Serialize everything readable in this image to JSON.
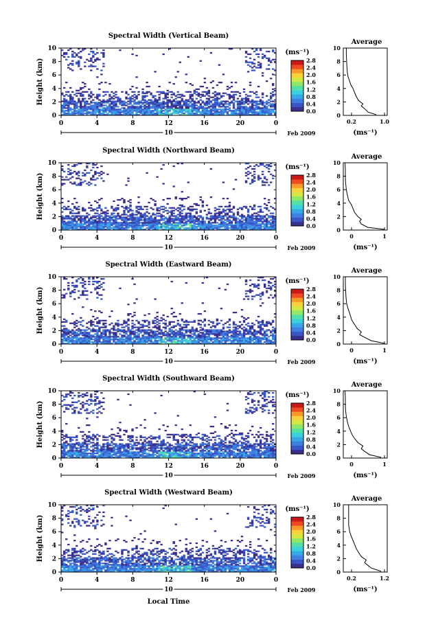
{
  "figure": {
    "xlabel": "Local Time",
    "date_label": "Feb 2009",
    "day_label": "10",
    "ylabel": "Height (km)",
    "unit_label": "(ms⁻¹)",
    "avg_title": "Average",
    "avg_xlabel": "(ms⁻¹)"
  },
  "chart_data": [
    {
      "type": "heatmap",
      "title": "Spectral Width (Vertical Beam)",
      "x_ticks": [
        "0",
        "4",
        "8",
        "12",
        "16",
        "20",
        "0"
      ],
      "y_ticks": [
        "0",
        "2",
        "4",
        "6",
        "8",
        "10"
      ],
      "colorbar_ticks": [
        "0.0",
        "0.4",
        "0.8",
        "1.2",
        "1.6",
        "2.0",
        "2.4",
        "2.8"
      ],
      "avg_x_ticks": [
        "0.2",
        "1.0"
      ],
      "avg_y_ticks": [
        "0",
        "2",
        "4",
        "6",
        "8",
        "10"
      ],
      "avg_profile": [
        [
          0.95,
          0.1
        ],
        [
          0.7,
          0.5
        ],
        [
          0.6,
          1.0
        ],
        [
          0.5,
          1.4
        ],
        [
          0.55,
          1.7
        ],
        [
          0.42,
          2.2
        ],
        [
          0.35,
          2.8
        ],
        [
          0.3,
          3.4
        ],
        [
          0.25,
          4.0
        ],
        [
          0.18,
          4.6
        ],
        [
          0.14,
          5.2
        ],
        [
          0.1,
          5.8
        ],
        [
          0.08,
          6.4
        ],
        [
          0.07,
          7.0
        ],
        [
          0.06,
          8.0
        ],
        [
          0.05,
          9.0
        ],
        [
          0.05,
          10.0
        ]
      ]
    },
    {
      "type": "heatmap",
      "title": "Spectral Width (Northward Beam)",
      "x_ticks": [
        "0",
        "4",
        "8",
        "12",
        "16",
        "20",
        "0"
      ],
      "y_ticks": [
        "0",
        "2",
        "4",
        "6",
        "8",
        "10"
      ],
      "colorbar_ticks": [
        "0.0",
        "0.4",
        "0.8",
        "1.2",
        "1.6",
        "2.0",
        "2.4",
        "2.8"
      ],
      "avg_x_ticks": [
        "0",
        "1"
      ],
      "avg_y_ticks": [
        "0",
        "2",
        "4",
        "6",
        "8",
        "10"
      ],
      "avg_profile": [
        [
          1.2,
          0.1
        ],
        [
          0.7,
          0.4
        ],
        [
          0.5,
          0.9
        ],
        [
          0.45,
          1.3
        ],
        [
          0.5,
          1.6
        ],
        [
          0.4,
          2.0
        ],
        [
          0.3,
          2.6
        ],
        [
          0.25,
          3.2
        ],
        [
          0.2,
          3.8
        ],
        [
          0.12,
          4.4
        ],
        [
          0.08,
          5.2
        ],
        [
          0.05,
          6.0
        ],
        [
          0.03,
          7.0
        ],
        [
          0.02,
          8.0
        ],
        [
          0.02,
          9.0
        ],
        [
          0.01,
          10.0
        ]
      ]
    },
    {
      "type": "heatmap",
      "title": "Spectral Width (Eastward Beam)",
      "x_ticks": [
        "0",
        "4",
        "8",
        "12",
        "16",
        "20",
        "0"
      ],
      "y_ticks": [
        "0",
        "2",
        "4",
        "6",
        "8",
        "10"
      ],
      "colorbar_ticks": [
        "0.0",
        "0.4",
        "0.8",
        "1.2",
        "1.6",
        "2.0",
        "2.4",
        "2.8"
      ],
      "avg_x_ticks": [
        "0",
        "1"
      ],
      "avg_y_ticks": [
        "0",
        "2",
        "4",
        "6",
        "8",
        "10"
      ],
      "avg_profile": [
        [
          1.2,
          0.1
        ],
        [
          0.8,
          0.5
        ],
        [
          0.6,
          1.0
        ],
        [
          0.45,
          1.4
        ],
        [
          0.5,
          1.8
        ],
        [
          0.38,
          2.3
        ],
        [
          0.3,
          2.9
        ],
        [
          0.22,
          3.5
        ],
        [
          0.18,
          4.1
        ],
        [
          0.14,
          4.7
        ],
        [
          0.1,
          5.3
        ],
        [
          0.06,
          6.0
        ],
        [
          0.04,
          7.0
        ],
        [
          0.03,
          8.0
        ],
        [
          0.02,
          9.0
        ],
        [
          0.02,
          10.0
        ]
      ]
    },
    {
      "type": "heatmap",
      "title": "Spectral Width (Southward Beam)",
      "x_ticks": [
        "0",
        "4",
        "8",
        "12",
        "16",
        "20",
        "0"
      ],
      "y_ticks": [
        "0",
        "2",
        "4",
        "6",
        "8",
        "10"
      ],
      "colorbar_ticks": [
        "0.0",
        "0.4",
        "0.8",
        "1.2",
        "1.6",
        "2.0",
        "2.4",
        "2.8"
      ],
      "avg_x_ticks": [
        "0",
        "1"
      ],
      "avg_y_ticks": [
        "0",
        "2",
        "4",
        "6",
        "8",
        "10"
      ],
      "avg_profile": [
        [
          1.1,
          0.1
        ],
        [
          0.75,
          0.5
        ],
        [
          0.6,
          1.0
        ],
        [
          0.5,
          1.4
        ],
        [
          0.55,
          1.8
        ],
        [
          0.4,
          2.3
        ],
        [
          0.3,
          2.9
        ],
        [
          0.22,
          3.5
        ],
        [
          0.17,
          4.1
        ],
        [
          0.12,
          4.7
        ],
        [
          0.08,
          5.4
        ],
        [
          0.05,
          6.2
        ],
        [
          0.03,
          7.0
        ],
        [
          0.02,
          8.0
        ],
        [
          0.02,
          9.0
        ],
        [
          0.01,
          10.0
        ]
      ]
    },
    {
      "type": "heatmap",
      "title": "Spectral Width (Westward Beam)",
      "x_ticks": [
        "0",
        "4",
        "8",
        "12",
        "16",
        "20",
        "0"
      ],
      "y_ticks": [
        "0",
        "2",
        "4",
        "6",
        "8",
        "10"
      ],
      "colorbar_ticks": [
        "0.0",
        "0.4",
        "0.8",
        "1.2",
        "1.6",
        "2.0",
        "2.4",
        "2.8"
      ],
      "avg_x_ticks": [
        "0.2",
        "1.2"
      ],
      "avg_y_ticks": [
        "0",
        "2",
        "4",
        "6",
        "8",
        "10"
      ],
      "avg_profile": [
        [
          1.1,
          0.1
        ],
        [
          0.8,
          0.6
        ],
        [
          0.7,
          1.0
        ],
        [
          0.6,
          1.4
        ],
        [
          0.65,
          1.8
        ],
        [
          0.5,
          2.3
        ],
        [
          0.42,
          2.9
        ],
        [
          0.35,
          3.5
        ],
        [
          0.3,
          4.1
        ],
        [
          0.25,
          4.7
        ],
        [
          0.2,
          5.3
        ],
        [
          0.15,
          6.0
        ],
        [
          0.12,
          7.0
        ],
        [
          0.12,
          8.0
        ],
        [
          0.12,
          9.0
        ],
        [
          0.12,
          10.0
        ]
      ]
    }
  ],
  "colors": {
    "colormap": [
      "#3b2f8c",
      "#3a55c8",
      "#3f7fe0",
      "#36a8e8",
      "#3ccfdc",
      "#52e0a8",
      "#8ee86a",
      "#d4e845",
      "#f8d23a",
      "#f89a2a",
      "#f04a20",
      "#c81818"
    ],
    "background": "#ffffff",
    "axis": "#000000"
  }
}
